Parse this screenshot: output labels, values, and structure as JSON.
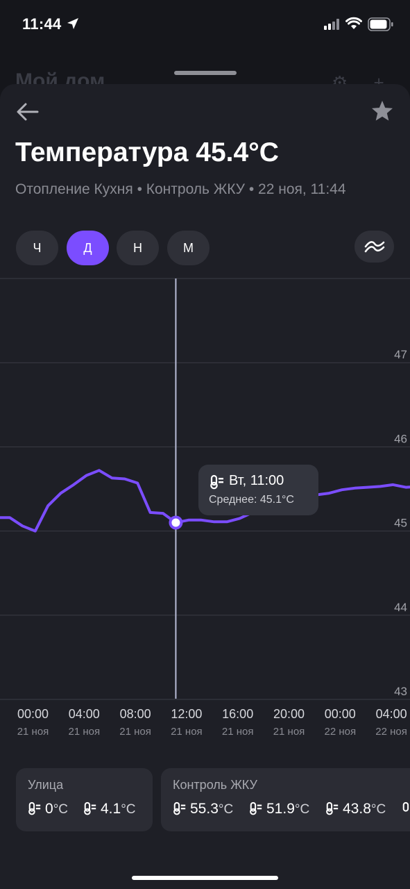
{
  "status": {
    "time": "11:44"
  },
  "background": {
    "title": "Мой дом"
  },
  "header": {
    "title": "Температура 45.4°C",
    "subtitle": "Отопление Кухня • Контроль ЖКУ • 22 ноя, 11:44"
  },
  "periods": [
    {
      "label": "Ч",
      "active": false
    },
    {
      "label": "Д",
      "active": true
    },
    {
      "label": "Н",
      "active": false
    },
    {
      "label": "М",
      "active": false
    }
  ],
  "icons": {
    "back": "arrow-left-icon",
    "favorite": "star-icon",
    "smooth": "smoothing-waves-icon",
    "sensor": "thermometer-icon"
  },
  "colors": {
    "accent": "#7b4dff",
    "line": "#7b4dff",
    "cursor": "#b7bbd6"
  },
  "tooltip": {
    "title": "Вт, 11:00",
    "subtitle": "Среднее: 45.1°C"
  },
  "chart_data": {
    "type": "line",
    "y_ticks": [
      "47",
      "46",
      "45",
      "44",
      "43"
    ],
    "ylim": [
      43,
      48
    ],
    "x_ticks": [
      {
        "time": "00:00",
        "date": "21 ноя"
      },
      {
        "time": "04:00",
        "date": "21 ноя"
      },
      {
        "time": "08:00",
        "date": "21 ноя"
      },
      {
        "time": "12:00",
        "date": "21 ноя"
      },
      {
        "time": "16:00",
        "date": "21 ноя"
      },
      {
        "time": "20:00",
        "date": "21 ноя"
      },
      {
        "time": "00:00",
        "date": "22 ноя"
      },
      {
        "time": "04:00",
        "date": "22 ноя"
      }
    ],
    "x_hours_range": [
      -3.1,
      32.0
    ],
    "points": [
      [
        -3.0,
        45.16
      ],
      [
        -2.0,
        45.16
      ],
      [
        -1.0,
        45.06
      ],
      [
        0.0,
        45.0
      ],
      [
        1.0,
        45.3
      ],
      [
        2.0,
        45.45
      ],
      [
        3.0,
        45.55
      ],
      [
        4.0,
        45.66
      ],
      [
        5.0,
        45.72
      ],
      [
        6.0,
        45.63
      ],
      [
        7.0,
        45.62
      ],
      [
        8.0,
        45.57
      ],
      [
        9.0,
        45.22
      ],
      [
        10.0,
        45.21
      ],
      [
        11.0,
        45.1
      ],
      [
        12.0,
        45.13
      ],
      [
        13.0,
        45.13
      ],
      [
        14.0,
        45.11
      ],
      [
        15.0,
        45.11
      ],
      [
        16.0,
        45.15
      ],
      [
        17.0,
        45.22
      ],
      [
        18.0,
        45.28
      ],
      [
        19.0,
        45.33
      ],
      [
        20.0,
        45.38
      ],
      [
        21.0,
        45.41
      ],
      [
        22.0,
        45.43
      ],
      [
        23.0,
        45.45
      ],
      [
        24.0,
        45.49
      ],
      [
        25.0,
        45.51
      ],
      [
        26.0,
        45.52
      ],
      [
        27.0,
        45.53
      ],
      [
        28.0,
        45.55
      ],
      [
        29.0,
        45.52
      ],
      [
        30.0,
        45.53
      ],
      [
        31.5,
        45.54
      ]
    ],
    "selected": {
      "hour": 11.0,
      "value": 45.1
    }
  },
  "cards": [
    {
      "title": "Улица",
      "readings": [
        {
          "value": "0",
          "unit": "°C"
        },
        {
          "value": "4.1",
          "unit": "°C"
        }
      ]
    },
    {
      "title": "Контроль ЖКУ",
      "readings": [
        {
          "value": "55.3",
          "unit": "°C"
        },
        {
          "value": "51.9",
          "unit": "°C"
        },
        {
          "value": "43.8",
          "unit": "°C"
        }
      ]
    }
  ]
}
